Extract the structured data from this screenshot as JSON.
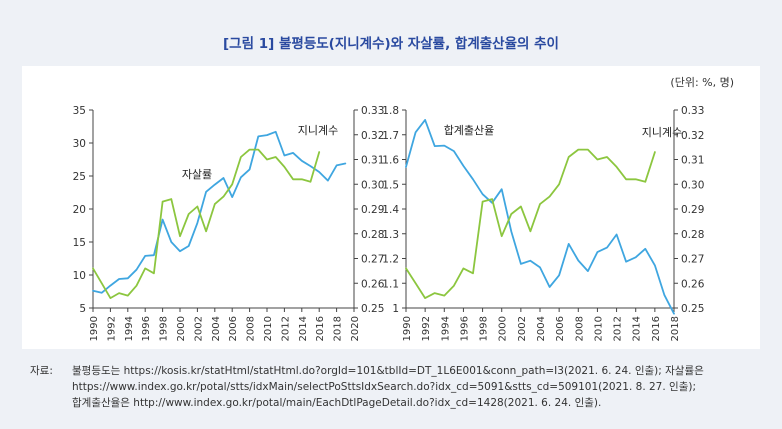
{
  "title": "[그림 1] 불평등도(지니계수)와 자살률, 합계출산율의 추이",
  "unit_note": "(단위: %, 명)",
  "source": {
    "label": "자료:",
    "lines": [
      "불평등도는 https://kosis.kr/statHtml/statHtml.do?orgId=101&tblId=DT_1L6E001&conn_path=I3(2021. 6. 24. 인출); 자살률은",
      "https://www.index.go.kr/potal/stts/idxMain/selectPoSttsIdxSearch.do?idx_cd=5091&stts_cd=509101(2021. 8. 27. 인출);",
      "합계출산율은 http://www.index.go.kr/potal/main/EachDtlPageDetail.do?idx_cd=1428(2021. 6. 24. 인출)."
    ]
  },
  "colors": {
    "blue": "#3fa6e0",
    "green": "#8cc63f",
    "title": "#2a4aa0",
    "background": "#eef1f6"
  },
  "chart_data": [
    {
      "type": "line",
      "title": "",
      "xlabel": "",
      "xlim": [
        1990,
        2020
      ],
      "x_ticks": [
        "1990",
        "1992",
        "1994",
        "1996",
        "1998",
        "2000",
        "2002",
        "2004",
        "2006",
        "2008",
        "2010",
        "2012",
        "2014",
        "2016",
        "2018",
        "2020"
      ],
      "ylim_left": [
        5,
        35
      ],
      "y_ticks_left": [
        "5",
        "10",
        "15",
        "20",
        "25",
        "30",
        "35"
      ],
      "ylim_right": [
        0.25,
        0.33
      ],
      "y_ticks_right": [
        "0.25",
        "0.26",
        "0.27",
        "0.28",
        "0.29",
        "0.30",
        "0.31",
        "0.32",
        "0.33"
      ],
      "grid": false,
      "series": [
        {
          "name": "자살률",
          "axis": "left",
          "color": "#3fa6e0",
          "x": [
            1990,
            1991,
            1992,
            1993,
            1994,
            1995,
            1996,
            1997,
            1998,
            1999,
            2000,
            2001,
            2002,
            2003,
            2004,
            2005,
            2006,
            2007,
            2008,
            2009,
            2010,
            2011,
            2012,
            2013,
            2014,
            2015,
            2016,
            2017,
            2018,
            2019
          ],
          "values": [
            7.6,
            7.3,
            8.4,
            9.4,
            9.5,
            10.8,
            12.9,
            13.0,
            18.4,
            15.0,
            13.6,
            14.4,
            17.9,
            22.6,
            23.7,
            24.7,
            21.8,
            24.8,
            26.0,
            31.0,
            31.2,
            31.7,
            28.1,
            28.5,
            27.3,
            26.5,
            25.6,
            24.3,
            26.6,
            26.9
          ]
        },
        {
          "name": "지니계수",
          "axis": "right",
          "color": "#8cc63f",
          "x": [
            1990,
            1991,
            1992,
            1993,
            1994,
            1995,
            1996,
            1997,
            1998,
            1999,
            2000,
            2001,
            2002,
            2003,
            2004,
            2005,
            2006,
            2007,
            2008,
            2009,
            2010,
            2011,
            2012,
            2013,
            2014,
            2015,
            2016
          ],
          "values": [
            0.266,
            0.26,
            0.254,
            0.256,
            0.255,
            0.259,
            0.266,
            0.264,
            0.293,
            0.294,
            0.279,
            0.288,
            0.291,
            0.281,
            0.292,
            0.295,
            0.3,
            0.311,
            0.314,
            0.314,
            0.31,
            0.311,
            0.307,
            0.302,
            0.302,
            0.301,
            0.313
          ]
        }
      ],
      "annotations": [
        "자살률",
        "지니계수"
      ]
    },
    {
      "type": "line",
      "title": "",
      "xlabel": "",
      "xlim": [
        1990,
        2018
      ],
      "x_ticks": [
        "1990",
        "1992",
        "1994",
        "1996",
        "1998",
        "2000",
        "2002",
        "2004",
        "2006",
        "2008",
        "2010",
        "2012",
        "2014",
        "2016",
        "2018"
      ],
      "ylim_left": [
        1.0,
        1.8
      ],
      "y_ticks_left": [
        "1",
        "1.1",
        "1.2",
        "1.3",
        "1.4",
        "1.5",
        "1.6",
        "1.7",
        "1.8"
      ],
      "ylim_right": [
        0.25,
        0.33
      ],
      "y_ticks_right": [
        "0.25",
        "0.26",
        "0.27",
        "0.28",
        "0.29",
        "0.30",
        "0.31",
        "0.32",
        "0.33"
      ],
      "grid": false,
      "series": [
        {
          "name": "합계출산율",
          "axis": "left",
          "color": "#3fa6e0",
          "x": [
            1990,
            1991,
            1992,
            1993,
            1994,
            1995,
            1996,
            1997,
            1998,
            1999,
            2000,
            2001,
            2002,
            2003,
            2004,
            2005,
            2006,
            2007,
            2008,
            2009,
            2010,
            2011,
            2012,
            2013,
            2014,
            2015,
            2016,
            2017,
            2018
          ],
          "values": [
            1.57,
            1.71,
            1.76,
            1.654,
            1.656,
            1.634,
            1.574,
            1.52,
            1.46,
            1.425,
            1.48,
            1.309,
            1.178,
            1.191,
            1.164,
            1.085,
            1.132,
            1.259,
            1.192,
            1.149,
            1.226,
            1.244,
            1.297,
            1.187,
            1.205,
            1.239,
            1.172,
            1.052,
            0.977
          ]
        },
        {
          "name": "지니계수",
          "axis": "right",
          "color": "#8cc63f",
          "x": [
            1990,
            1991,
            1992,
            1993,
            1994,
            1995,
            1996,
            1997,
            1998,
            1999,
            2000,
            2001,
            2002,
            2003,
            2004,
            2005,
            2006,
            2007,
            2008,
            2009,
            2010,
            2011,
            2012,
            2013,
            2014,
            2015,
            2016
          ],
          "values": [
            0.266,
            0.26,
            0.254,
            0.256,
            0.255,
            0.259,
            0.266,
            0.264,
            0.293,
            0.294,
            0.279,
            0.288,
            0.291,
            0.281,
            0.292,
            0.295,
            0.3,
            0.311,
            0.314,
            0.314,
            0.31,
            0.311,
            0.307,
            0.302,
            0.302,
            0.301,
            0.313
          ]
        }
      ],
      "annotations": [
        "합계출산율",
        "지니계수"
      ]
    }
  ]
}
